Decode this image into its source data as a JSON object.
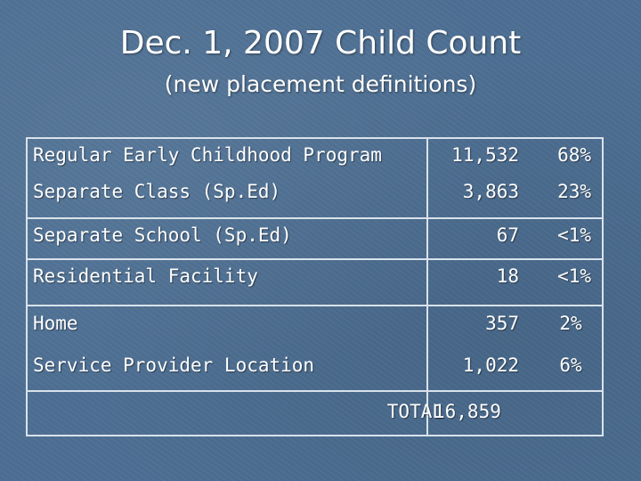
{
  "slide": {
    "title": "Dec. 1, 2007 Child Count",
    "subtitle": "(new placement definitions)"
  },
  "table": {
    "rows": [
      {
        "label": "Regular Early Childhood Program",
        "count": "11,532",
        "percent": "68%"
      },
      {
        "label": "Separate Class (Sp.Ed)",
        "count": "3,863",
        "percent": "23%"
      },
      {
        "label": "Separate School (Sp.Ed)",
        "count": "67",
        "percent": "<1%"
      },
      {
        "label": "Residential Facility",
        "count": "18",
        "percent": "<1%"
      },
      {
        "label": "Home",
        "count": "357",
        "percent": "2%"
      },
      {
        "label": "Service Provider Location",
        "count": "1,022",
        "percent": "6%"
      }
    ],
    "total_label": "TOTAL",
    "total_value": "16,859"
  }
}
